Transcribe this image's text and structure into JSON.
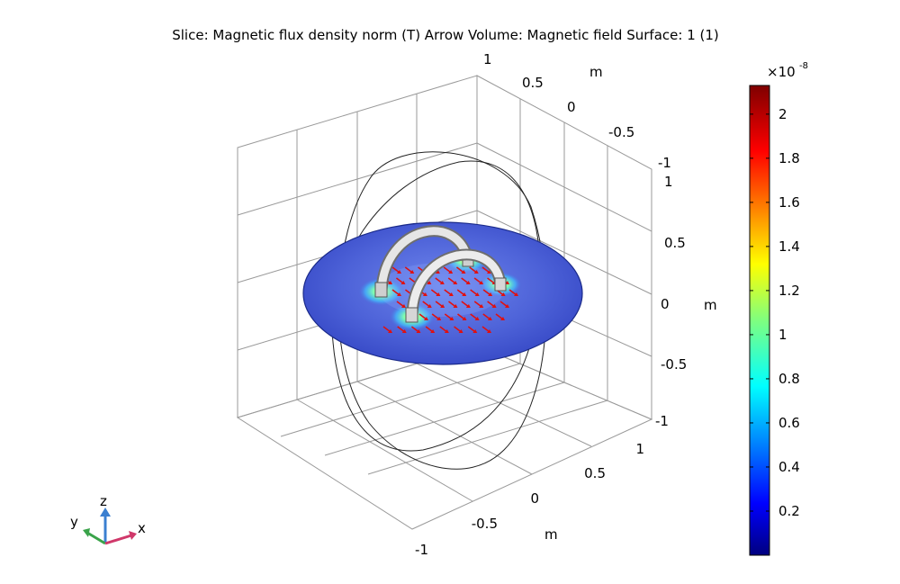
{
  "title": "Slice: Magnetic flux density norm (T)  Arrow Volume: Magnetic field  Surface: 1 (1)",
  "chart_data": {
    "type": "heatmap",
    "title": "Slice: Magnetic flux density norm (T)  Arrow Volume: Magnetic field  Surface: 1 (1)",
    "plot_kind": "3D slice with arrow volume",
    "axes": {
      "x": {
        "label": "m",
        "ticks": [
          "-1",
          "-0.5",
          "0",
          "0.5",
          "1"
        ],
        "range": [
          -1,
          1
        ]
      },
      "y": {
        "label": "m",
        "ticks": [
          "1",
          "0.5",
          "0",
          "-0.5",
          "-1"
        ],
        "range": [
          -1,
          1
        ]
      },
      "z": {
        "label": "m",
        "ticks": [
          "1",
          "0.5",
          "0",
          "-0.5",
          "-1"
        ],
        "range": [
          -1,
          1
        ]
      }
    },
    "grid": true,
    "colorbar": {
      "exponent_label": "×10",
      "exponent": "-8",
      "ticks": [
        "2",
        "1.8",
        "1.6",
        "1.4",
        "1.2",
        "1",
        "0.8",
        "0.6",
        "0.4",
        "0.2"
      ],
      "tick_values": [
        2,
        1.8,
        1.6,
        1.4,
        1.2,
        1,
        0.8,
        0.6,
        0.4,
        0.2
      ],
      "range": [
        0,
        2.13
      ],
      "colormap": "rainbow"
    }
  },
  "triad": {
    "z": "z",
    "y": "y",
    "x": "x"
  },
  "colors": {
    "slice": "#4a5fd4",
    "slice_edge": "#1a2a8a",
    "coil": "#d8d8d8",
    "arrow": "#e01010",
    "hot": "#7fff9a",
    "grid": "#999999"
  }
}
